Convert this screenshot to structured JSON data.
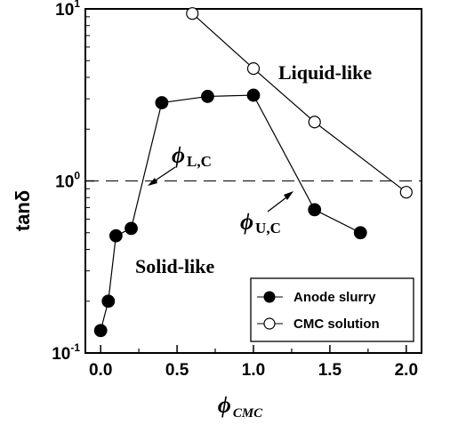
{
  "chart_data": {
    "type": "line",
    "y_scale": "log",
    "xlim": [
      -0.1,
      2.1
    ],
    "ylim": [
      0.1,
      10
    ],
    "x_ticks": [
      0.0,
      0.5,
      1.0,
      1.5,
      2.0
    ],
    "x_tick_labels": [
      "0.0",
      "0.5",
      "1.0",
      "1.5",
      "2.0"
    ],
    "y_ticks": [
      0.1,
      1,
      10
    ],
    "y_tick_labels": [
      {
        "base": "10",
        "exp": "-1"
      },
      {
        "base": "10",
        "exp": "0"
      },
      {
        "base": "10",
        "exp": "1"
      }
    ],
    "xlabel": {
      "symbol": "ϕ",
      "subscript": "CMC"
    },
    "ylabel": "tanδ",
    "grid": false,
    "legend_position": "bottom-right",
    "reference_line": {
      "y": 1.0,
      "style": "dashed"
    },
    "series": [
      {
        "name": "Anode slurry",
        "marker": "filled-circle",
        "x": [
          0.0,
          0.05,
          0.1,
          0.2,
          0.4,
          0.7,
          1.0,
          1.4,
          1.7
        ],
        "y": [
          0.135,
          0.2,
          0.48,
          0.53,
          2.85,
          3.1,
          3.15,
          0.68,
          0.5
        ]
      },
      {
        "name": "CMC solution",
        "marker": "open-circle",
        "x": [
          0.6,
          1.0,
          1.4,
          2.0
        ],
        "y": [
          9.4,
          4.5,
          2.2,
          0.86
        ]
      }
    ],
    "annotations": {
      "liquid_like": "Liquid-like",
      "solid_like": "Solid-like",
      "phi_lower": {
        "symbol": "ϕ",
        "subscript": "L,C",
        "x": 0.28
      },
      "phi_upper": {
        "symbol": "ϕ",
        "subscript": "U,C",
        "x": 1.28
      }
    },
    "colors": {
      "line": "#000000",
      "open_marker_fill": "#ffffff",
      "filled_marker": "#000000"
    }
  }
}
